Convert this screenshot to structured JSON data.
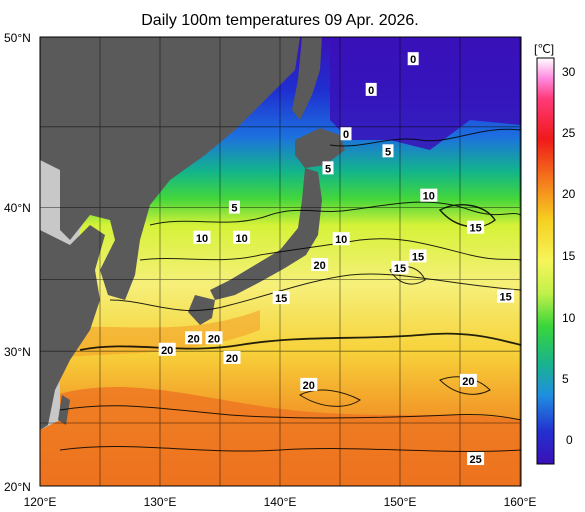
{
  "title": "Daily 100m temperatures 09 Apr. 2026.",
  "unit": "[℃]",
  "axes": {
    "lat_ticks": [
      "50°N",
      "40°N",
      "30°N",
      "20°N"
    ],
    "lon_ticks": [
      "120°E",
      "130°E",
      "140°E",
      "150°E",
      "160°E"
    ]
  },
  "colorbar": {
    "ticks": [
      "30",
      "25",
      "20",
      "15",
      "10",
      "5",
      "0"
    ]
  },
  "contour_labels": [
    {
      "text": "0",
      "lon": 151.1,
      "lat": 48.7
    },
    {
      "text": "0",
      "lon": 147.6,
      "lat": 46.9
    },
    {
      "text": "0",
      "lon": 145.5,
      "lat": 44.3
    },
    {
      "text": "5",
      "lon": 144.0,
      "lat": 42.3
    },
    {
      "text": "5",
      "lon": 149.0,
      "lat": 43.3
    },
    {
      "text": "5",
      "lon": 136.2,
      "lat": 40.0
    },
    {
      "text": "10",
      "lon": 133.5,
      "lat": 37.9
    },
    {
      "text": "10",
      "lon": 136.8,
      "lat": 37.9
    },
    {
      "text": "10",
      "lon": 145.1,
      "lat": 37.8
    },
    {
      "text": "10",
      "lon": 152.4,
      "lat": 40.7
    },
    {
      "text": "15",
      "lon": 156.3,
      "lat": 38.6
    },
    {
      "text": "15",
      "lon": 151.5,
      "lat": 36.6
    },
    {
      "text": "15",
      "lon": 150.0,
      "lat": 35.8
    },
    {
      "text": "15",
      "lon": 158.8,
      "lat": 33.8
    },
    {
      "text": "15",
      "lon": 140.1,
      "lat": 33.7
    },
    {
      "text": "20",
      "lon": 143.3,
      "lat": 36.0
    },
    {
      "text": "20",
      "lon": 132.8,
      "lat": 30.9
    },
    {
      "text": "20",
      "lon": 134.5,
      "lat": 30.9
    },
    {
      "text": "20",
      "lon": 130.6,
      "lat": 30.1
    },
    {
      "text": "20",
      "lon": 136.0,
      "lat": 29.5
    },
    {
      "text": "20",
      "lon": 142.4,
      "lat": 27.5
    },
    {
      "text": "20",
      "lon": 155.7,
      "lat": 27.8
    },
    {
      "text": "25",
      "lon": 156.3,
      "lat": 22.0
    }
  ],
  "colors": {
    "land": "#5a5a5a",
    "land_outside": "#c8c8c8",
    "cold": "#3a0fb0",
    "warm": "#f07a1c"
  }
}
